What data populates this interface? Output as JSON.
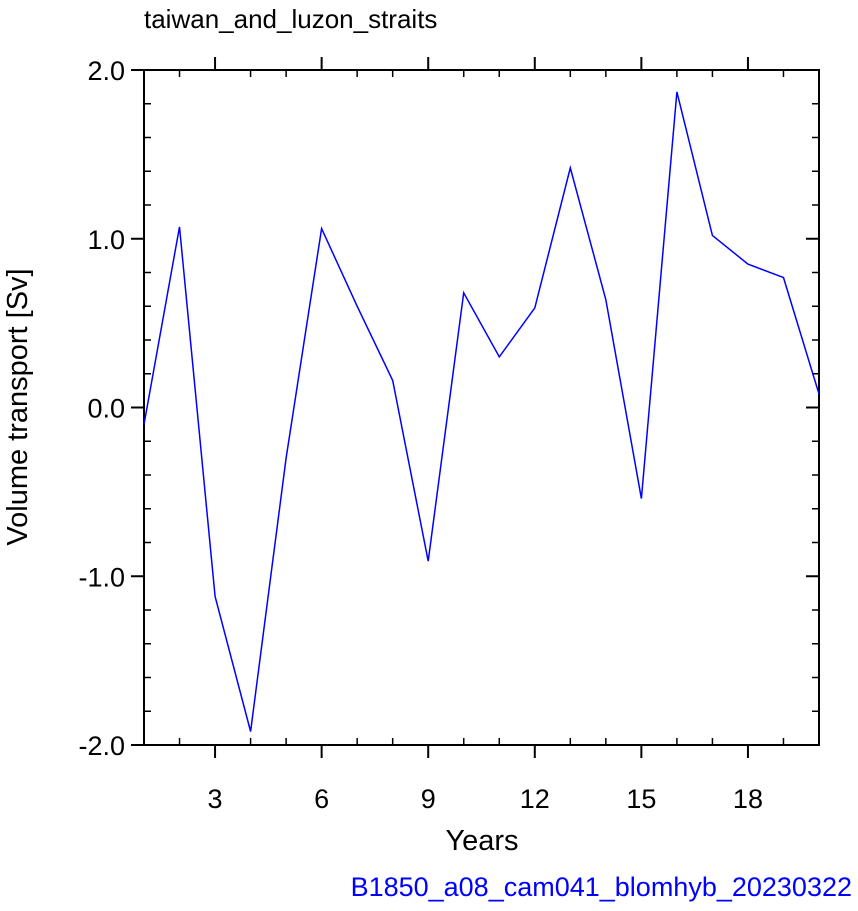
{
  "chart_data": {
    "type": "line",
    "title": "taiwan_and_luzon_straits",
    "xlabel": "Years",
    "ylabel": "Volume transport [Sv]",
    "footer": "B1850_a08_cam041_blomhyb_20230322",
    "xlim": [
      1,
      20
    ],
    "ylim": [
      -2.0,
      2.0
    ],
    "x_ticks": [
      3,
      6,
      9,
      12,
      15,
      18
    ],
    "y_ticks": [
      -2.0,
      -1.0,
      0.0,
      1.0,
      2.0
    ],
    "y_tick_labels": [
      "-2.0",
      "-1.0",
      "0.0",
      "1.0",
      "2.0"
    ],
    "grid": false,
    "series": [
      {
        "color": "#0000ff",
        "x": [
          1,
          2,
          3,
          4,
          5,
          6,
          7,
          8,
          9,
          10,
          11,
          12,
          13,
          14,
          15,
          16,
          17,
          18,
          19,
          20
        ],
        "y": [
          -0.1,
          1.07,
          -1.12,
          -1.92,
          -0.3,
          1.06,
          0.6,
          0.16,
          -0.91,
          0.68,
          0.3,
          0.59,
          1.42,
          0.64,
          -0.54,
          1.87,
          1.02,
          0.85,
          0.77,
          0.08
        ]
      }
    ]
  }
}
